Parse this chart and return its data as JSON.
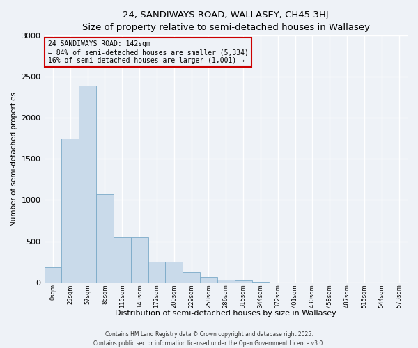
{
  "title_line1": "24, SANDIWAYS ROAD, WALLASEY, CH45 3HJ",
  "title_line2": "Size of property relative to semi-detached houses in Wallasey",
  "xlabel": "Distribution of semi-detached houses by size in Wallasey",
  "ylabel": "Number of semi-detached properties",
  "bar_color": "#c9daea",
  "bar_edge_color": "#7baac8",
  "background_color": "#eef2f7",
  "grid_color": "#ffffff",
  "annotation_box_color": "#cc0000",
  "annotation_line1": "24 SANDIWAYS ROAD: 142sqm",
  "annotation_line2": "← 84% of semi-detached houses are smaller (5,334)",
  "annotation_line3": "16% of semi-detached houses are larger (1,001) →",
  "categories": [
    "0sqm",
    "29sqm",
    "57sqm",
    "86sqm",
    "115sqm",
    "143sqm",
    "172sqm",
    "200sqm",
    "229sqm",
    "258sqm",
    "286sqm",
    "315sqm",
    "344sqm",
    "372sqm",
    "401sqm",
    "430sqm",
    "458sqm",
    "487sqm",
    "515sqm",
    "544sqm",
    "573sqm"
  ],
  "values": [
    185,
    1750,
    2390,
    1070,
    545,
    545,
    250,
    250,
    125,
    65,
    30,
    20,
    5,
    0,
    0,
    0,
    0,
    0,
    0,
    0,
    0
  ],
  "ylim": [
    0,
    3000
  ],
  "yticks": [
    0,
    500,
    1000,
    1500,
    2000,
    2500,
    3000
  ],
  "footnote_line1": "Contains HM Land Registry data © Crown copyright and database right 2025.",
  "footnote_line2": "Contains public sector information licensed under the Open Government Licence v3.0."
}
